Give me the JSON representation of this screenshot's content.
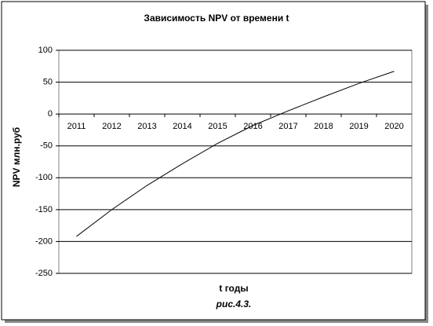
{
  "chart_data": {
    "type": "line",
    "title": "Зависимость NPV  от времени t",
    "x_label": "t годы",
    "y_label": "NPV млн.руб",
    "caption": "рис.4.3.",
    "categories": [
      "2011",
      "2012",
      "2013",
      "2014",
      "2015",
      "2016",
      "2017",
      "2018",
      "2019",
      "2020"
    ],
    "values": [
      -192,
      -150,
      -112,
      -78,
      -46,
      -18,
      5,
      27,
      48,
      67
    ],
    "color": "#000000",
    "ylim": [
      -250,
      100
    ],
    "yticks": [
      -250,
      -200,
      -150,
      -100,
      -50,
      0,
      50,
      100
    ],
    "grid": true
  }
}
